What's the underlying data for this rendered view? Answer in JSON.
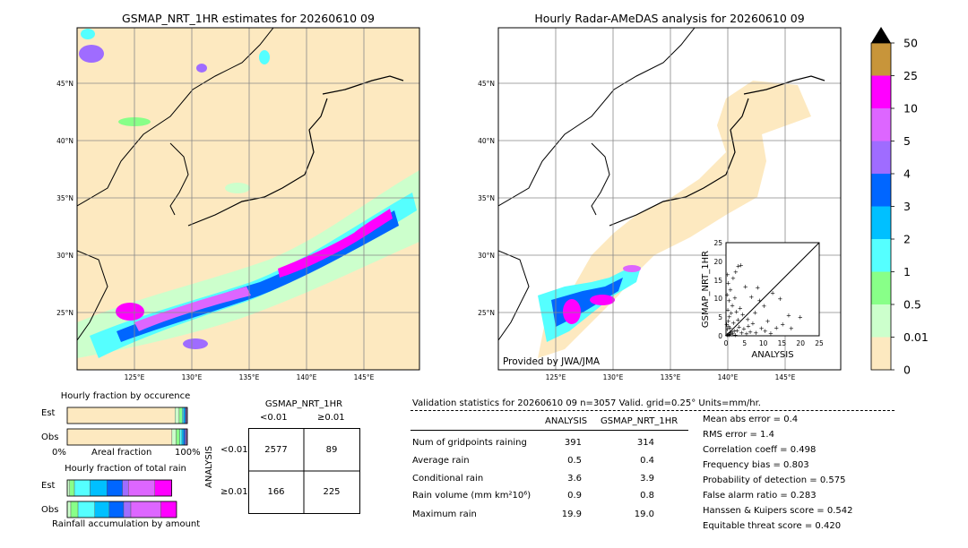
{
  "left_map": {
    "title": "GSMAP_NRT_1HR estimates for 20260610 09",
    "lat_labels": [
      "45°N",
      "40°N",
      "35°N",
      "30°N",
      "25°N"
    ],
    "lon_labels": [
      "125°E",
      "130°E",
      "135°E",
      "140°E",
      "145°E"
    ]
  },
  "right_map": {
    "title": "Hourly Radar-AMeDAS analysis for 20260610 09",
    "lat_labels": [
      "45°N",
      "40°N",
      "35°N",
      "30°N",
      "25°N"
    ],
    "lon_labels": [
      "125°E",
      "130°E",
      "135°E",
      "140°E",
      "145°E"
    ],
    "credit": "Provided by JWA/JMA"
  },
  "colorbar": {
    "labels": [
      "50",
      "25",
      "10",
      "5",
      "4",
      "3",
      "2",
      "1",
      "0.5",
      "0.01",
      "0"
    ],
    "colors": [
      "#c8953a",
      "#ff00ff",
      "#dd66ff",
      "#9f6cff",
      "#0066ff",
      "#00c0ff",
      "#55ffff",
      "#88ff88",
      "#ccffcc",
      "#fde9c0"
    ],
    "top_arrow_color": "#000000"
  },
  "chart_data": [
    {
      "type": "scatter",
      "title": "",
      "xlabel": "ANALYSIS",
      "ylabel": "GSMAP_NRT_1HR",
      "xlim": [
        0,
        25
      ],
      "ylim": [
        0,
        25
      ],
      "x_ticks": [
        "0",
        "5",
        "10",
        "15",
        "20",
        "25"
      ],
      "y_ticks": [
        "0",
        "5",
        "10",
        "15",
        "20",
        "25"
      ],
      "diagonal": true,
      "points": [
        [
          0.3,
          0.2
        ],
        [
          0.5,
          0.4
        ],
        [
          0.8,
          0.3
        ],
        [
          1.0,
          0.9
        ],
        [
          1.2,
          0.5
        ],
        [
          1.5,
          1.1
        ],
        [
          0.4,
          1.8
        ],
        [
          0.7,
          2.5
        ],
        [
          1.8,
          0.6
        ],
        [
          2.2,
          1.3
        ],
        [
          0.2,
          3.1
        ],
        [
          0.6,
          4.0
        ],
        [
          1.1,
          2.2
        ],
        [
          2.5,
          0.3
        ],
        [
          3.0,
          1.5
        ],
        [
          0.9,
          5.2
        ],
        [
          1.4,
          6.1
        ],
        [
          0.5,
          7.0
        ],
        [
          2.0,
          3.5
        ],
        [
          3.5,
          2.4
        ],
        [
          4.2,
          0.8
        ],
        [
          4.8,
          1.9
        ],
        [
          5.5,
          0.6
        ],
        [
          6.0,
          2.7
        ],
        [
          1.7,
          8.2
        ],
        [
          0.8,
          9.5
        ],
        [
          2.8,
          6.5
        ],
        [
          3.2,
          4.3
        ],
        [
          0.3,
          11.0
        ],
        [
          1.2,
          12.4
        ],
        [
          2.4,
          10.2
        ],
        [
          6.5,
          1.1
        ],
        [
          7.2,
          3.4
        ],
        [
          8.0,
          0.9
        ],
        [
          9.5,
          2.1
        ],
        [
          10.5,
          1.3
        ],
        [
          12.0,
          0.7
        ],
        [
          11.2,
          4.0
        ],
        [
          13.5,
          2.2
        ],
        [
          3.8,
          7.5
        ],
        [
          4.5,
          5.8
        ],
        [
          5.8,
          4.4
        ],
        [
          7.8,
          6.2
        ],
        [
          9.0,
          9.5
        ],
        [
          10.2,
          8.0
        ],
        [
          12.5,
          11.5
        ],
        [
          8.5,
          13.0
        ],
        [
          6.8,
          10.5
        ],
        [
          0.6,
          14.2
        ],
        [
          1.9,
          15.5
        ],
        [
          3.3,
          18.8
        ],
        [
          4.0,
          19.0
        ],
        [
          2.6,
          17.2
        ],
        [
          14.5,
          10.0
        ],
        [
          16.8,
          5.5
        ],
        [
          19.9,
          5.0
        ],
        [
          15.2,
          3.1
        ],
        [
          17.5,
          2.0
        ],
        [
          0.4,
          16.5
        ],
        [
          5.2,
          13.2
        ]
      ]
    },
    {
      "type": "bar",
      "title": "Hourly fraction by occurence",
      "xlabel": "Areal fraction",
      "x_tick_labels": [
        "0%",
        "100%"
      ],
      "categories": [
        "Est",
        "Obs"
      ],
      "series": [
        {
          "color": "#fde9c0",
          "values": [
            0.897,
            0.872
          ]
        },
        {
          "color": "#ccffcc",
          "values": [
            0.035,
            0.035
          ]
        },
        {
          "color": "#88ff88",
          "values": [
            0.025,
            0.03
          ]
        },
        {
          "color": "#55ffff",
          "values": [
            0.012,
            0.018
          ]
        },
        {
          "color": "#00c0ff",
          "values": [
            0.01,
            0.015
          ]
        },
        {
          "color": "#0066ff",
          "values": [
            0.008,
            0.012
          ]
        },
        {
          "color": "#9f6cff",
          "values": [
            0.006,
            0.008
          ]
        },
        {
          "color": "#dd66ff",
          "values": [
            0.005,
            0.006
          ]
        },
        {
          "color": "#ff00ff",
          "values": [
            0.002,
            0.004
          ]
        }
      ]
    },
    {
      "type": "bar",
      "title": "Hourly fraction of total rain",
      "xlabel": "Rainfall accumulation by amount",
      "categories": [
        "Est",
        "Obs"
      ],
      "series": [
        {
          "color": "#ccffcc",
          "values": [
            0.02,
            0.03
          ]
        },
        {
          "color": "#88ff88",
          "values": [
            0.04,
            0.06
          ]
        },
        {
          "color": "#55ffff",
          "values": [
            0.13,
            0.14
          ]
        },
        {
          "color": "#00c0ff",
          "values": [
            0.14,
            0.12
          ]
        },
        {
          "color": "#0066ff",
          "values": [
            0.13,
            0.12
          ]
        },
        {
          "color": "#9f6cff",
          "values": [
            0.05,
            0.06
          ]
        },
        {
          "color": "#dd66ff",
          "values": [
            0.22,
            0.25
          ]
        },
        {
          "color": "#ff00ff",
          "values": [
            0.14,
            0.13
          ]
        }
      ]
    }
  ],
  "contingency": {
    "title": "GSMAP_NRT_1HR",
    "col_labels": [
      "<0.01",
      "≥0.01"
    ],
    "row_title": "ANALYSIS",
    "row_labels": [
      "<0.01",
      "≥0.01"
    ],
    "cells": [
      [
        "2577",
        "89"
      ],
      [
        "166",
        "225"
      ]
    ]
  },
  "validation": {
    "header": "Validation statistics for 20260610 09  n=3057 Valid. grid=0.25° Units=mm/hr.",
    "col_analysis": "ANALYSIS",
    "col_gsmap": "GSMAP_NRT_1HR",
    "rows": [
      {
        "label": "Num of gridpoints raining",
        "analysis": "391",
        "gsmap": "314"
      },
      {
        "label": "Average rain",
        "analysis": "0.5",
        "gsmap": "0.4"
      },
      {
        "label": "Conditional rain",
        "analysis": "3.6",
        "gsmap": "3.9"
      },
      {
        "label": "Rain volume (mm km²10⁶)",
        "analysis": "0.9",
        "gsmap": "0.8"
      },
      {
        "label": "Maximum rain",
        "analysis": "19.9",
        "gsmap": "19.0"
      }
    ],
    "scores": [
      "Mean abs error =    0.4",
      "RMS error =    1.4",
      "Correlation coeff =  0.498",
      "Frequency bias =  0.803",
      "Probability of detection =  0.575",
      "False alarm ratio =  0.283",
      "Hanssen & Kuipers score =  0.542",
      "Equitable threat score =  0.420"
    ]
  }
}
